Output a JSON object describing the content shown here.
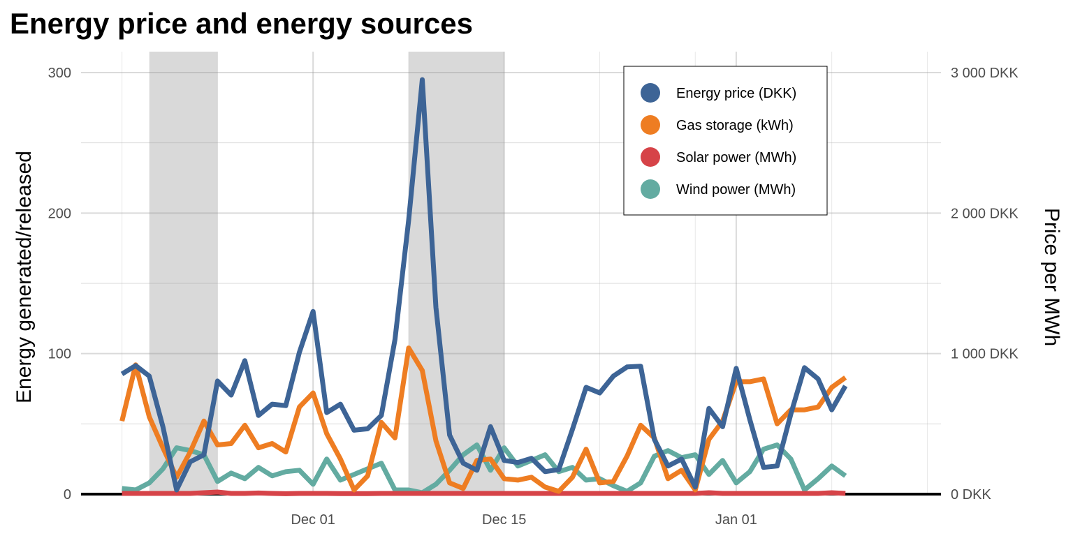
{
  "chart_data": {
    "type": "line",
    "title": "Energy price and energy sources",
    "ylabel": "Energy generated/released",
    "y2label": "Price per MWh",
    "ylim": [
      0,
      300
    ],
    "y2lim": [
      0,
      3000
    ],
    "yticks": [
      0,
      100,
      200,
      300
    ],
    "y2ticks": [
      "0 DKK",
      "1 000 DKK",
      "2 000 DKK",
      "3 000 DKK"
    ],
    "xticks": [
      {
        "date": "2022-12-01",
        "label": "Dec 01"
      },
      {
        "date": "2022-12-15",
        "label": "Dec 15"
      },
      {
        "date": "2023-01-01",
        "label": "Jan 01"
      }
    ],
    "xlim": [
      "2022-11-14",
      "2023-01-16"
    ],
    "x_start": "2022-11-17",
    "grid": true,
    "legend": "top-right",
    "shaded_periods": [
      [
        "2022-11-19",
        "2022-11-24"
      ],
      [
        "2022-12-08",
        "2022-12-15"
      ]
    ],
    "series": [
      {
        "name": "Energy price (DKK)",
        "axis": "right",
        "color": "#3d6496",
        "values": [
          855,
          915,
          840,
          480,
          30,
          230,
          280,
          805,
          705,
          950,
          560,
          640,
          630,
          1010,
          1300,
          580,
          640,
          455,
          465,
          560,
          1100,
          1950,
          2950,
          1330,
          420,
          220,
          170,
          480,
          240,
          225,
          255,
          160,
          175,
          460,
          760,
          720,
          840,
          905,
          910,
          390,
          200,
          250,
          50,
          610,
          480,
          895,
          530,
          190,
          200,
          570,
          900,
          820,
          600,
          770
        ]
      },
      {
        "name": "Gas storage (kWh)",
        "axis": "left",
        "color": "#ee7d22",
        "values": [
          52,
          92,
          55,
          33,
          12,
          30,
          52,
          35,
          36,
          49,
          33,
          36,
          30,
          62,
          72,
          43,
          25,
          3,
          13,
          51,
          40,
          104,
          88,
          38,
          8,
          4,
          24,
          25,
          11,
          10,
          12,
          5,
          2,
          12,
          32,
          8,
          9,
          27,
          49,
          40,
          11,
          17,
          3,
          39,
          52,
          80,
          80,
          82,
          50,
          60,
          60,
          62,
          76,
          83
        ]
      },
      {
        "name": "Solar power (MWh)",
        "axis": "left",
        "color": "#d64348",
        "values": [
          0.5,
          0.5,
          0.5,
          0.5,
          0.5,
          0.5,
          1,
          1.5,
          0.5,
          0.5,
          0.8,
          0.5,
          0.3,
          0.5,
          0.5,
          0.5,
          0.4,
          0.4,
          0.4,
          0.5,
          0.5,
          0.5,
          0.5,
          0.5,
          0.5,
          0.5,
          0.5,
          0.5,
          0.5,
          0.5,
          0.5,
          0.5,
          0.5,
          0.5,
          0.5,
          0.5,
          0.5,
          0.5,
          0.5,
          0.5,
          0.5,
          0.5,
          0.5,
          1,
          0.5,
          0.5,
          0.5,
          0.5,
          0.5,
          0.5,
          0.5,
          0.5,
          1,
          0.5
        ]
      },
      {
        "name": "Wind power (MWh)",
        "axis": "left",
        "color": "#63aba1",
        "values": [
          4,
          3,
          8,
          18,
          33,
          31,
          28,
          9,
          15,
          11,
          19,
          13,
          16,
          17,
          7,
          25,
          10,
          14,
          18,
          22,
          3,
          3,
          1,
          7,
          17,
          28,
          35,
          17,
          33,
          20,
          24,
          28,
          16,
          19,
          10,
          11,
          6,
          2,
          8,
          27,
          31,
          26,
          28,
          14,
          24,
          8,
          16,
          32,
          35,
          25,
          3,
          11,
          20,
          13
        ]
      }
    ]
  }
}
